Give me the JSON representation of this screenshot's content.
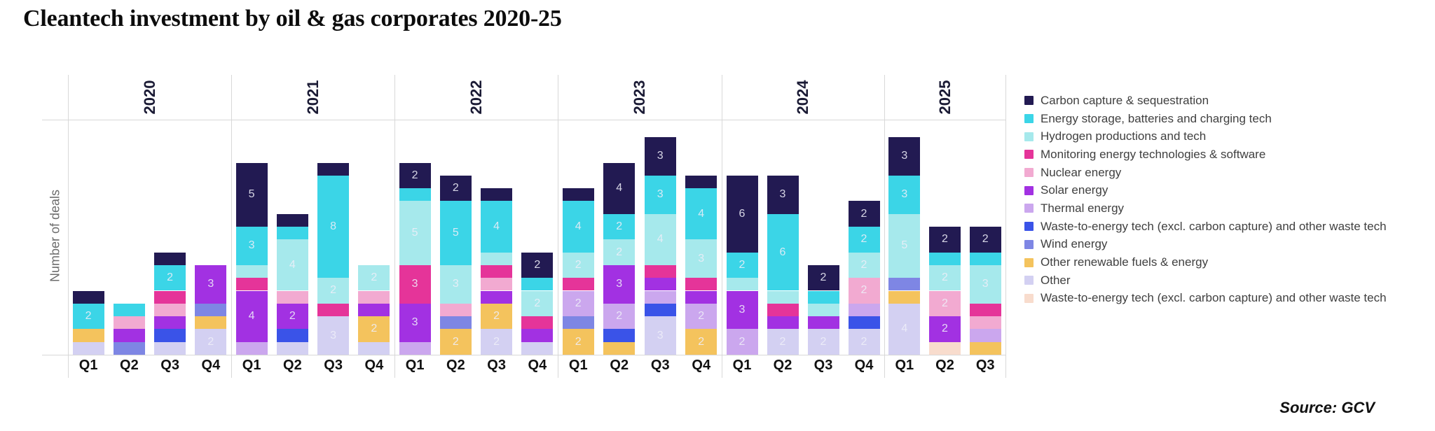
{
  "title": "Cleantech investment by oil & gas corporates 2020-25",
  "y_axis_label": "Number of deals",
  "source": "Source: GCV",
  "legend": [
    {
      "label": "Carbon capture & sequestration",
      "color": "#221a52"
    },
    {
      "label": "Energy storage, batteries and charging tech",
      "color": "#3bd5e7"
    },
    {
      "label": "Hydrogen productions and tech",
      "color": "#a6e9ec"
    },
    {
      "label": "Monitoring energy technologies & software",
      "color": "#e53499"
    },
    {
      "label": "Nuclear energy",
      "color": "#f2aad1"
    },
    {
      "label": "Solar energy",
      "color": "#a231e2"
    },
    {
      "label": "Thermal energy",
      "color": "#cba7ee"
    },
    {
      "label": "Waste-to-energy tech (excl. carbon capture) and other waste tech",
      "color": "#3a53e8"
    },
    {
      "label": "Wind energy",
      "color": "#7e86e4"
    },
    {
      "label": "Other renewable fuels & energy",
      "color": "#f4c35d"
    },
    {
      "label": "Other",
      "color": "#d3d0f2"
    },
    {
      "label": "Waste-to-energy tech (excl. carbon capture) and other waste tech",
      "color": "#f8dccd"
    }
  ],
  "chart_data": {
    "type": "bar",
    "stacked": true,
    "title": "Cleantech investment by oil & gas corporates 2020-25",
    "ylabel": "Number of deals",
    "xlabel": "",
    "grid": "year separators and top/baseline rules only, no y-axis ticks",
    "legend_position": "right",
    "label_min_value": 2,
    "years": [
      {
        "label": "2020",
        "quarters": [
          "Q1",
          "Q2",
          "Q3",
          "Q4"
        ]
      },
      {
        "label": "2021",
        "quarters": [
          "Q1",
          "Q2",
          "Q3",
          "Q4"
        ]
      },
      {
        "label": "2022",
        "quarters": [
          "Q1",
          "Q2",
          "Q3",
          "Q4"
        ]
      },
      {
        "label": "2023",
        "quarters": [
          "Q1",
          "Q2",
          "Q3",
          "Q4"
        ]
      },
      {
        "label": "2024",
        "quarters": [
          "Q1",
          "Q2",
          "Q3",
          "Q4"
        ]
      },
      {
        "label": "2025",
        "quarters": [
          "Q1",
          "Q2",
          "Q3"
        ]
      }
    ],
    "categories": [
      "2020 Q1",
      "2020 Q2",
      "2020 Q3",
      "2020 Q4",
      "2021 Q1",
      "2021 Q2",
      "2021 Q3",
      "2021 Q4",
      "2022 Q1",
      "2022 Q2",
      "2022 Q3",
      "2022 Q4",
      "2023 Q1",
      "2023 Q2",
      "2023 Q3",
      "2023 Q4",
      "2024 Q1",
      "2024 Q2",
      "2024 Q3",
      "2024 Q4",
      "2025 Q1",
      "2025 Q2",
      "2025 Q3"
    ],
    "series": [
      {
        "name": "Carbon capture & sequestration",
        "color": "#221a52",
        "values": [
          1,
          0,
          1,
          0,
          5,
          1,
          1,
          0,
          2,
          2,
          1,
          2,
          1,
          4,
          3,
          1,
          6,
          3,
          2,
          2,
          3,
          2,
          2
        ]
      },
      {
        "name": "Energy storage, batteries and charging tech",
        "color": "#3bd5e7",
        "values": [
          2,
          1,
          2,
          0,
          3,
          1,
          8,
          0,
          1,
          5,
          4,
          1,
          4,
          2,
          3,
          4,
          2,
          6,
          1,
          2,
          3,
          1,
          1
        ]
      },
      {
        "name": "Hydrogen productions and tech",
        "color": "#a6e9ec",
        "values": [
          0,
          0,
          0,
          0,
          1,
          4,
          2,
          2,
          5,
          3,
          1,
          2,
          2,
          2,
          4,
          3,
          1,
          1,
          1,
          2,
          5,
          2,
          3
        ]
      },
      {
        "name": "Monitoring energy technologies & software",
        "color": "#e53499",
        "values": [
          0,
          0,
          1,
          0,
          1,
          0,
          1,
          0,
          3,
          0,
          1,
          1,
          1,
          0,
          1,
          1,
          0,
          1,
          0,
          0,
          0,
          0,
          1
        ]
      },
      {
        "name": "Nuclear energy",
        "color": "#f2aad1",
        "values": [
          0,
          1,
          1,
          0,
          0,
          1,
          0,
          1,
          0,
          1,
          1,
          0,
          0,
          0,
          0,
          0,
          0,
          0,
          0,
          2,
          0,
          2,
          1
        ]
      },
      {
        "name": "Solar energy",
        "color": "#a231e2",
        "values": [
          0,
          1,
          1,
          3,
          4,
          2,
          0,
          1,
          3,
          0,
          1,
          1,
          0,
          3,
          1,
          1,
          3,
          1,
          1,
          0,
          0,
          2,
          0
        ]
      },
      {
        "name": "Thermal energy",
        "color": "#cba7ee",
        "values": [
          0,
          0,
          0,
          0,
          1,
          0,
          0,
          0,
          1,
          0,
          0,
          0,
          2,
          2,
          1,
          2,
          2,
          0,
          0,
          1,
          0,
          0,
          1
        ]
      },
      {
        "name": "Waste-to-energy tech (excl. carbon capture) and other waste tech",
        "color": "#3a53e8",
        "values": [
          0,
          0,
          1,
          0,
          0,
          1,
          0,
          0,
          0,
          0,
          0,
          0,
          0,
          1,
          1,
          0,
          0,
          0,
          0,
          1,
          0,
          0,
          0
        ]
      },
      {
        "name": "Wind energy",
        "color": "#7e86e4",
        "values": [
          0,
          1,
          0,
          1,
          0,
          0,
          0,
          0,
          0,
          1,
          0,
          0,
          1,
          0,
          0,
          0,
          0,
          0,
          0,
          0,
          1,
          0,
          0
        ]
      },
      {
        "name": "Other renewable fuels & energy",
        "color": "#f4c35d",
        "values": [
          1,
          0,
          0,
          1,
          0,
          0,
          0,
          2,
          0,
          2,
          2,
          0,
          2,
          1,
          0,
          2,
          0,
          0,
          0,
          0,
          1,
          0,
          1
        ]
      },
      {
        "name": "Other",
        "color": "#d3d0f2",
        "values": [
          1,
          0,
          1,
          2,
          0,
          1,
          3,
          1,
          0,
          0,
          2,
          1,
          0,
          0,
          3,
          0,
          0,
          2,
          2,
          2,
          4,
          0,
          0
        ]
      },
      {
        "name": "Waste-to-energy tech (excl. carbon capture) and other waste tech (light)",
        "color": "#f8dccd",
        "values": [
          0,
          0,
          0,
          0,
          0,
          0,
          0,
          0,
          0,
          0,
          0,
          0,
          0,
          0,
          0,
          0,
          0,
          0,
          0,
          0,
          0,
          1,
          0
        ]
      }
    ],
    "totals": [
      5,
      4,
      8,
      7,
      15,
      11,
      15,
      7,
      15,
      14,
      13,
      8,
      13,
      15,
      17,
      14,
      14,
      14,
      7,
      12,
      17,
      10,
      10
    ]
  }
}
